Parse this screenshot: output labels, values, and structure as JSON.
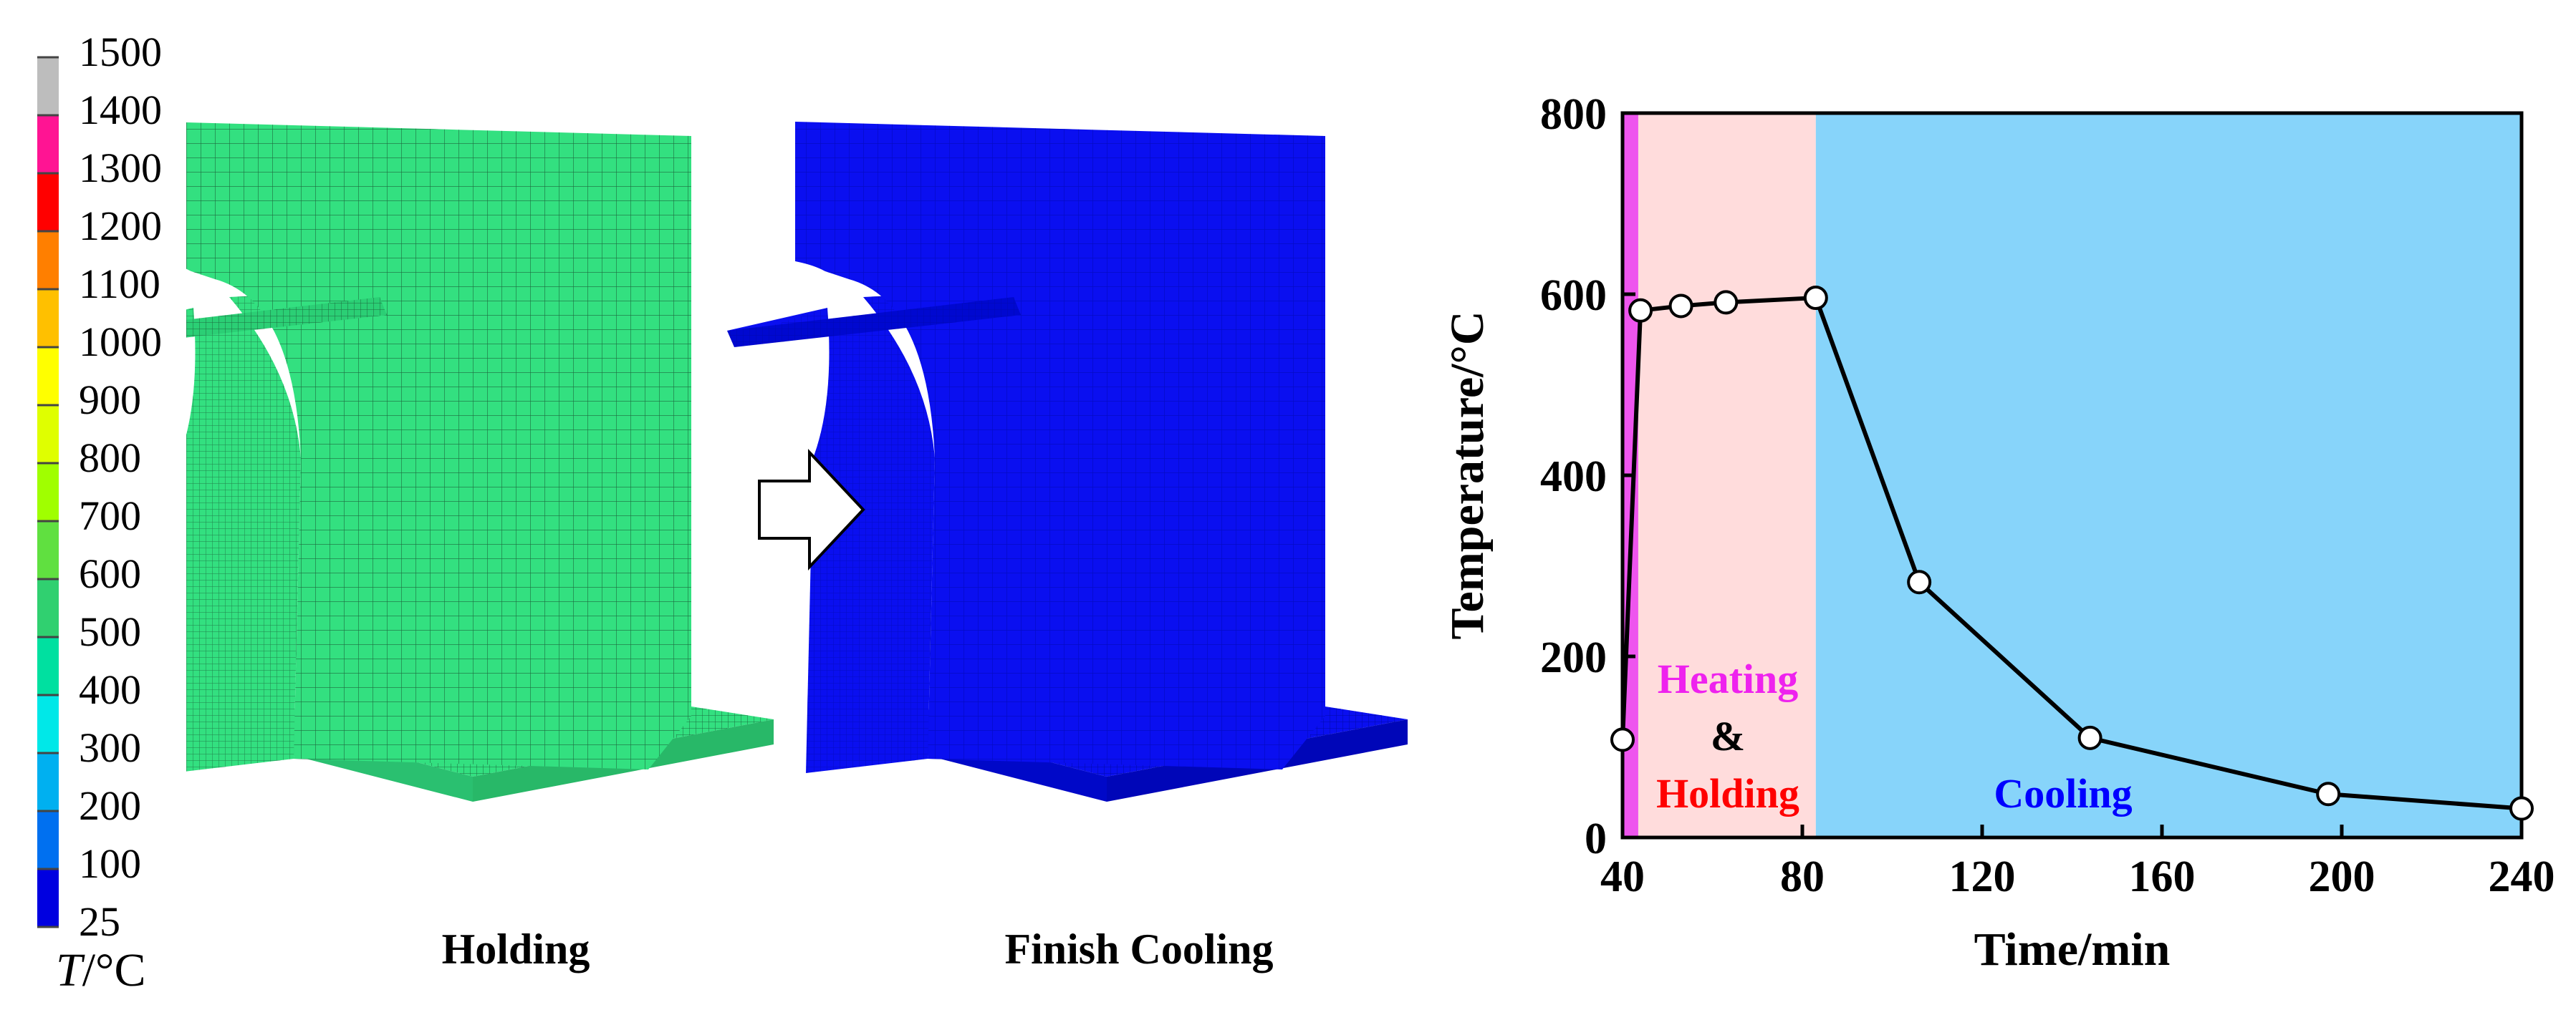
{
  "colorbar": {
    "ticks": [
      "1500",
      "1400",
      "1300",
      "1200",
      "1100",
      "1000",
      "900",
      "800",
      "700",
      "600",
      "500",
      "400",
      "300",
      "200",
      "100",
      "25"
    ],
    "colors": [
      "#bdbdbd",
      "#ff1493",
      "#ff0000",
      "#ff7f00",
      "#ffc000",
      "#ffff00",
      "#dfff00",
      "#a0ff00",
      "#60e040",
      "#30d070",
      "#00e0a0",
      "#00e8e8",
      "#00b0f0",
      "#0070f0",
      "#0000e0"
    ],
    "unit_var": "T",
    "unit_rest": "/°C"
  },
  "models": {
    "left_caption": "Holding",
    "right_caption": "Finish Cooling",
    "left_color": "#33e080",
    "right_color": "#0a0ff0",
    "arrow": "right-arrow-icon"
  },
  "chart_data": {
    "type": "line",
    "xlabel": "Time/min",
    "ylabel": "Temperature/°C",
    "xlim": [
      40,
      240
    ],
    "ylim": [
      0,
      800
    ],
    "xticks": [
      40,
      80,
      120,
      160,
      200,
      240
    ],
    "yticks": [
      0,
      200,
      400,
      600,
      800
    ],
    "grid": false,
    "x": [
      40,
      44,
      53,
      63,
      83,
      106,
      144,
      197,
      240
    ],
    "y": [
      108,
      582,
      587,
      591,
      596,
      282,
      110,
      48,
      32
    ],
    "regions": [
      {
        "x0": 40,
        "x1": 43.5,
        "color": "#ee55ee"
      },
      {
        "x0": 43.5,
        "x1": 83,
        "color": "#ffdcdc"
      },
      {
        "x0": 83,
        "x1": 240,
        "color": "#87d4fa"
      }
    ],
    "annotations": [
      {
        "text": "Heating",
        "color": "#ee22ee"
      },
      {
        "text": "&",
        "color": "#000000"
      },
      {
        "text": "Holding",
        "color": "#ff0000"
      },
      {
        "text": "Cooling",
        "color": "#0000ff"
      }
    ]
  }
}
